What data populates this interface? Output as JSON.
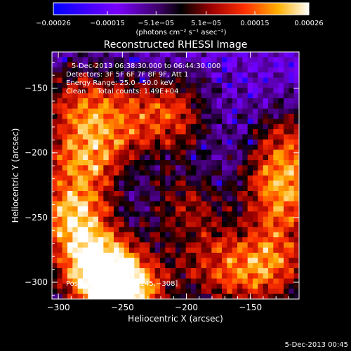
{
  "chart_data": {
    "type": "heatmap",
    "title": "Reconstructed RHESSI Image",
    "xlabel": "Heliocentric X (arcsec)",
    "ylabel": "Heliocentric Y (arcsec)",
    "xlim": [
      -305,
      -112
    ],
    "ylim": [
      -313,
      -122
    ],
    "x_ticks": [
      -300,
      -250,
      -200,
      -150
    ],
    "y_ticks": [
      -150,
      -200,
      -250,
      -300
    ],
    "x_tick_labels": [
      "−300",
      "−250",
      "−200",
      "−150"
    ],
    "y_tick_labels": [
      "−150",
      "−200",
      "−250",
      "−300"
    ],
    "colorbar": {
      "range": [
        -0.00026,
        0.00026
      ],
      "tick_values": [
        -0.00026,
        -0.00015,
        -5.1e-05,
        5.1e-05,
        0.00015,
        0.00026
      ],
      "tick_labels": [
        "−0.00026",
        "−0.00015",
        "−5.1e−05",
        "5.1e−05",
        "0.00015",
        "0.00026"
      ],
      "unit_label": "(photons cm⁻² s⁻¹ asec⁻²)",
      "colormap": "blue-purple-red-yellow-white"
    },
    "info_lines": [
      "5-Dec-2013 06:38:30.000 to 06:44:30.000",
      "Detectors: 3F 5F 6F 7F 8F 9F, Att 1",
      "Energy Range: 25.0 - 50.0 keV",
      "Clean     Total counts: 1.49E+04"
    ],
    "peak_label": "Position of Peak = [−245,−308]",
    "peak": [
      -245,
      -308
    ],
    "sources": [
      {
        "x": -270,
        "y": -290,
        "strength": 1.0
      },
      {
        "x": -245,
        "y": -308,
        "strength": 1.0
      },
      {
        "x": -290,
        "y": -250,
        "strength": 0.85
      },
      {
        "x": -280,
        "y": -205,
        "strength": 0.7
      },
      {
        "x": -285,
        "y": -160,
        "strength": 0.55
      },
      {
        "x": -250,
        "y": -175,
        "strength": 0.5
      },
      {
        "x": -210,
        "y": -170,
        "strength": 0.6
      },
      {
        "x": -200,
        "y": -240,
        "strength": 0.45
      },
      {
        "x": -180,
        "y": -285,
        "strength": 0.45
      },
      {
        "x": -150,
        "y": -300,
        "strength": 0.4
      },
      {
        "x": -125,
        "y": -230,
        "strength": 0.75
      },
      {
        "x": -130,
        "y": -280,
        "strength": 0.6
      },
      {
        "x": -120,
        "y": -195,
        "strength": 0.55
      }
    ],
    "background_level": 0.22
  },
  "footer_timestamp": "5-Dec-2013 00:45"
}
